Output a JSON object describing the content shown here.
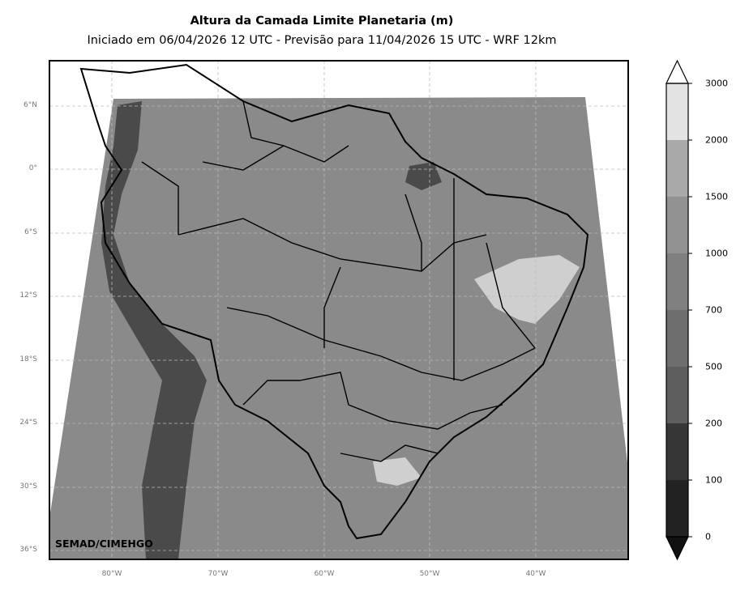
{
  "title": "Altura da Camada Limite Planetaria (m)",
  "subtitle": "Iniciado em 06/04/2026 12 UTC - Previsão para 11/04/2026 15 UTC - WRF 12km",
  "credit": "SEMAD/CIMEHGO",
  "lat_labels": [
    "6°N",
    "0°",
    "6°S",
    "12°S",
    "18°S",
    "24°S",
    "30°S",
    "36°S"
  ],
  "lon_labels": [
    "80°W",
    "70°W",
    "60°W",
    "50°W",
    "40°W"
  ],
  "colorbar": {
    "labels": [
      "3000",
      "2000",
      "1500",
      "1000",
      "700",
      "500",
      "200",
      "100",
      "0"
    ],
    "colors": [
      "#e3e3e3",
      "#a9a9a9",
      "#929292",
      "#808080",
      "#6e6e6e",
      "#5e5e5e",
      "#363636",
      "#222222"
    ],
    "over_color": "#ffffff",
    "under_color": "#111111"
  },
  "map_colors": {
    "ocean_fill": "#707070",
    "land_fill": "#8a8a8a",
    "deep_shade": "#4a4a4a",
    "light_shade": "#cfcfcf",
    "grid": "#bbbbbb"
  }
}
